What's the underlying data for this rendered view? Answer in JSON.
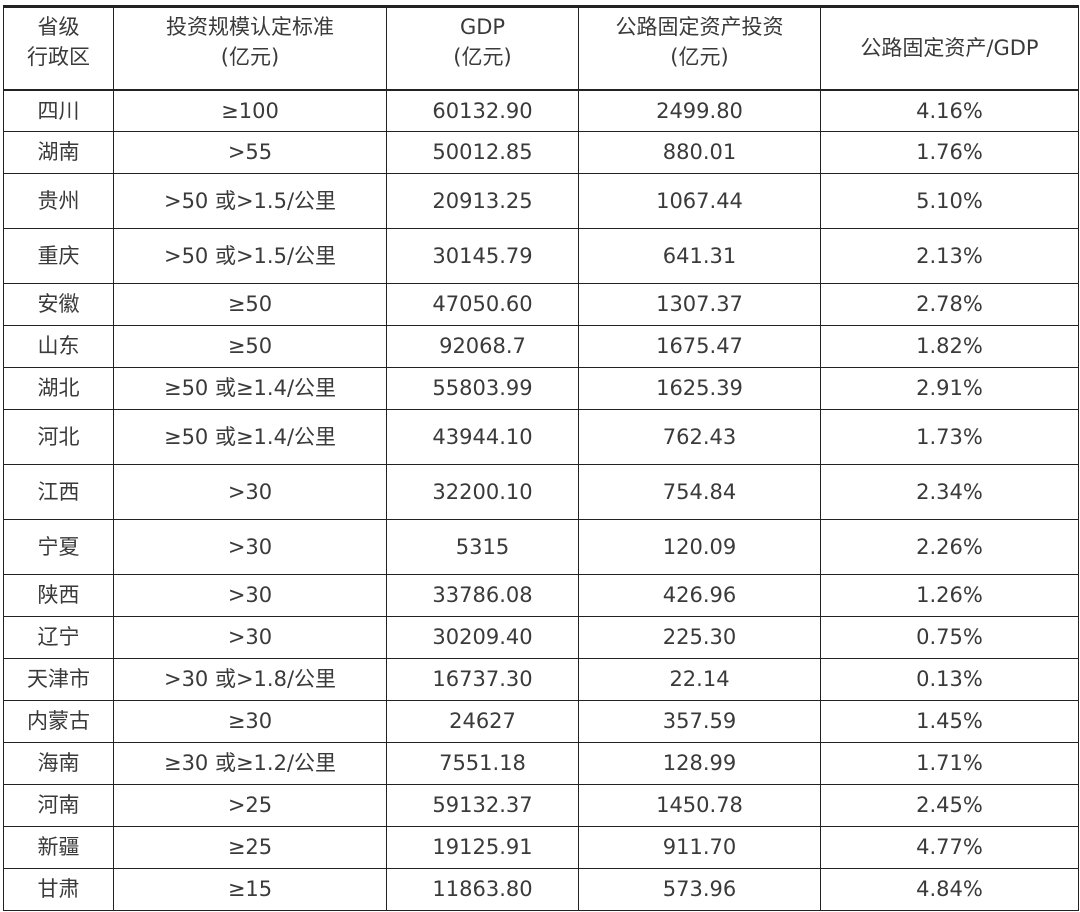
{
  "headers": [
    {
      "line1": "省级",
      "line2": "行政区"
    },
    {
      "line1": "投资规模认定标准",
      "line2": "(亿元)"
    },
    {
      "line1": "GDP",
      "line2": "(亿元)"
    },
    {
      "line1": "公路固定资产投资",
      "line2": "(亿元)"
    },
    {
      "line1": "公路固定资产/GDP",
      "line2": ""
    }
  ],
  "rows": [
    [
      "四川",
      "≥100",
      "60132.90",
      "2499.80",
      "4.16%"
    ],
    [
      "湖南",
      ">55",
      "50012.85",
      "880.01",
      "1.76%"
    ],
    [
      "贵州",
      ">50 或>1.5/公里",
      "20913.25",
      "1067.44",
      "5.10%"
    ],
    [
      "重庆",
      ">50 或>1.5/公里",
      "30145.79",
      "641.31",
      "2.13%"
    ],
    [
      "安徽",
      "≥50",
      "47050.60",
      "1307.37",
      "2.78%"
    ],
    [
      "山东",
      "≥50",
      "92068.7",
      "1675.47",
      "1.82%"
    ],
    [
      "湖北",
      "≥50 或≥1.4/公里",
      "55803.99",
      "1625.39",
      "2.91%"
    ],
    [
      "河北",
      "≥50 或≥1.4/公里",
      "43944.10",
      "762.43",
      "1.73%"
    ],
    [
      "江西",
      ">30",
      "32200.10",
      "754.84",
      "2.34%"
    ],
    [
      "宁夏",
      ">30",
      "5315",
      "120.09",
      "2.26%"
    ],
    [
      "陕西",
      ">30",
      "33786.08",
      "426.96",
      "1.26%"
    ],
    [
      "辽宁",
      ">30",
      "30209.40",
      "225.30",
      "0.75%"
    ],
    [
      "天津市",
      ">30 或>1.8/公里",
      "16737.30",
      "22.14",
      "0.13%"
    ],
    [
      "内蒙古",
      "≥30",
      "24627",
      "357.59",
      "1.45%"
    ],
    [
      "海南",
      "≥30 或≥1.2/公里",
      "7551.18",
      "128.99",
      "1.71%"
    ],
    [
      "河南",
      ">25",
      "59132.37",
      "1450.78",
      "2.45%"
    ],
    [
      "新疆",
      "≥25",
      "19125.91",
      "911.70",
      "4.77%"
    ],
    [
      "甘肃",
      "≥15",
      "11863.80",
      "573.96",
      "4.84%"
    ]
  ]
}
